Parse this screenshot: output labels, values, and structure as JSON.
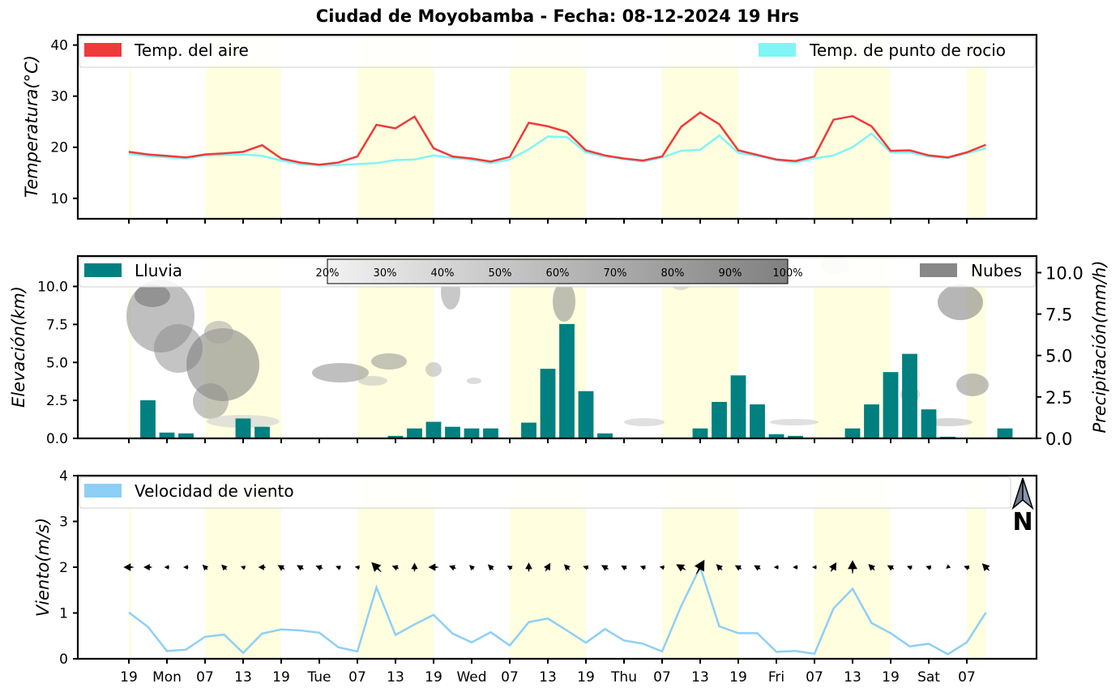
{
  "title": "Ciudad de Moyobamba   -   Fecha: 08-12-2024 19 Hrs",
  "x_ticks": [
    "19",
    "Mon",
    "07",
    "13",
    "19",
    "Tue",
    "07",
    "13",
    "19",
    "Wed",
    "07",
    "13",
    "19",
    "Thu",
    "07",
    "13",
    "19",
    "Fri",
    "07",
    "13",
    "19",
    "Sat",
    "07"
  ],
  "daytime_bands": [
    [
      2,
      4
    ],
    [
      6,
      8
    ],
    [
      10,
      12
    ],
    [
      14,
      16
    ],
    [
      18,
      20
    ],
    [
      22,
      22.5
    ]
  ],
  "chart_data": [
    {
      "type": "line",
      "ylabel": "Temperatura(°C)",
      "ylim": [
        6,
        42
      ],
      "yticks": [
        10,
        20,
        30,
        40
      ],
      "legend_placement": "top",
      "series": [
        {
          "name": "Temp. del aire",
          "color": "#ef3a3a",
          "values": [
            19.1,
            18.6,
            18.3,
            18.0,
            18.6,
            18.8,
            19.1,
            20.4,
            17.8,
            17.0,
            16.6,
            17.0,
            18.2,
            24.4,
            23.7,
            26.0,
            19.8,
            18.2,
            17.8,
            17.2,
            18.1,
            24.8,
            24.1,
            23.0,
            19.4,
            18.4,
            17.8,
            17.4,
            18.2,
            24.0,
            26.8,
            24.5,
            19.4,
            18.5,
            17.6,
            17.3,
            18.2,
            25.4,
            26.1,
            24.1,
            19.3,
            19.4,
            18.4,
            18.0,
            19.0,
            20.5
          ]
        },
        {
          "name": "Temp. de punto de rocio",
          "color": "#80f5f5",
          "values": [
            18.7,
            18.3,
            18.0,
            17.8,
            18.4,
            18.5,
            18.6,
            18.3,
            17.4,
            16.7,
            16.4,
            16.5,
            16.7,
            16.9,
            17.5,
            17.6,
            18.4,
            17.9,
            17.6,
            16.9,
            17.6,
            19.6,
            22.1,
            22.0,
            19.0,
            18.2,
            17.7,
            17.2,
            18.0,
            19.3,
            19.5,
            22.3,
            18.9,
            18.3,
            17.5,
            17.0,
            17.8,
            18.4,
            20.0,
            22.7,
            19.0,
            19.0,
            18.2,
            17.9,
            18.8,
            19.8
          ]
        }
      ]
    },
    {
      "type": "bar",
      "ylabel": "Elevación(km)",
      "ylabel_right": "Precipitación(mm/h)",
      "ylim": [
        0,
        12
      ],
      "yticks": [
        0.0,
        2.5,
        5.0,
        7.5,
        10.0
      ],
      "ylim_right": [
        0,
        11
      ],
      "yticks_right": [
        0.0,
        2.5,
        5.0,
        7.5,
        10.0
      ],
      "colorbar_labels": [
        "20%",
        "30%",
        "40%",
        "50%",
        "60%",
        "70%",
        "80%",
        "90%",
        "100%"
      ],
      "legend_placement": "top",
      "series": [
        {
          "name": "Lluvia",
          "color": "#008080",
          "values": [
            0,
            2.3,
            0.35,
            0.3,
            0,
            0,
            1.2,
            0.7,
            0,
            0,
            0,
            0,
            0,
            0,
            0.15,
            0.6,
            1.0,
            0.7,
            0.6,
            0.6,
            0,
            0.95,
            4.2,
            6.9,
            2.85,
            0.3,
            0,
            0,
            0,
            0,
            0.6,
            2.2,
            3.8,
            2.05,
            0.25,
            0.15,
            0,
            0,
            0.6,
            2.05,
            4.0,
            5.1,
            1.75,
            0.1,
            0,
            0.05,
            0.6
          ]
        },
        {
          "name": "Nubes",
          "color": "#888888",
          "values": []
        }
      ]
    },
    {
      "type": "line",
      "ylabel": "Viento(m/s)",
      "ylim": [
        0,
        4
      ],
      "yticks": [
        0,
        1,
        2,
        3,
        4
      ],
      "legend_placement": "top-left",
      "series": [
        {
          "name": "Velocidad de viento",
          "color": "#8ecff5",
          "values": [
            1.01,
            0.7,
            0.17,
            0.2,
            0.48,
            0.53,
            0.13,
            0.55,
            0.64,
            0.62,
            0.57,
            0.25,
            0.16,
            1.56,
            0.52,
            0.75,
            0.96,
            0.55,
            0.36,
            0.58,
            0.29,
            0.8,
            0.88,
            0.62,
            0.35,
            0.65,
            0.4,
            0.33,
            0.16,
            1.15,
            2.0,
            0.71,
            0.56,
            0.56,
            0.15,
            0.17,
            0.11,
            1.1,
            1.53,
            0.78,
            0.56,
            0.27,
            0.33,
            0.1,
            0.36,
            1.01
          ]
        }
      ],
      "wind_dir_deg": [
        270,
        270,
        270,
        270,
        315,
        315,
        290,
        270,
        300,
        300,
        290,
        290,
        280,
        315,
        290,
        0,
        270,
        290,
        315,
        315,
        300,
        0,
        30,
        315,
        290,
        300,
        300,
        290,
        280,
        300,
        30,
        315,
        300,
        300,
        270,
        270,
        270,
        30,
        0,
        315,
        300,
        290,
        290,
        230,
        290,
        315
      ],
      "north_label": "N"
    }
  ]
}
